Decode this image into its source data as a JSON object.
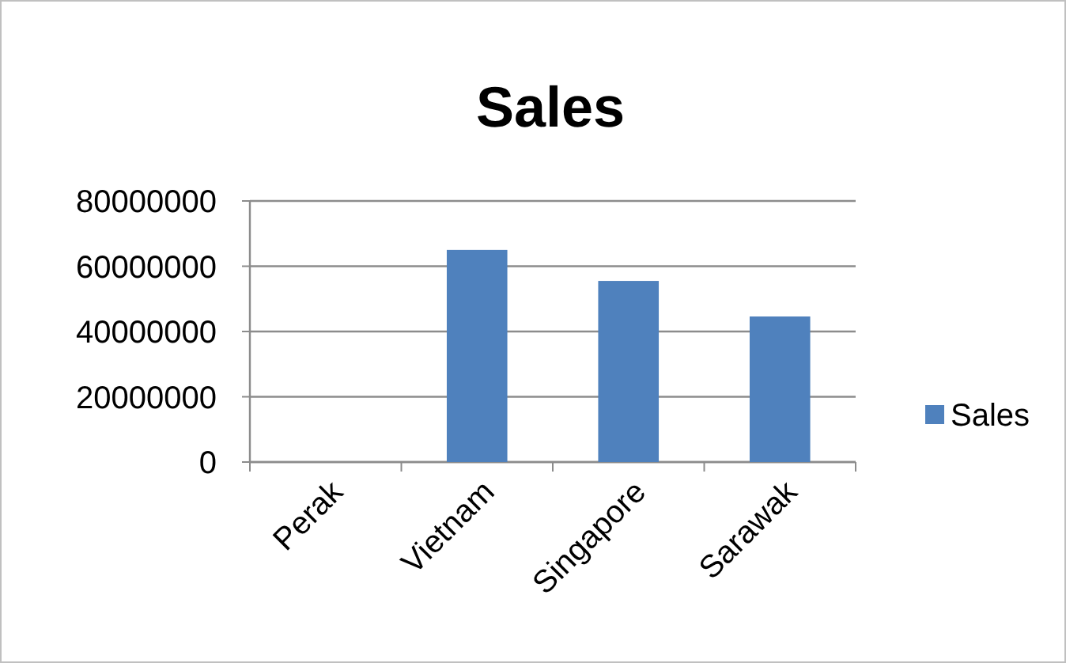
{
  "chart_data": {
    "type": "bar",
    "title": "Sales",
    "categories": [
      "Perak",
      "Vietnam",
      "Singapore",
      "Sarawak"
    ],
    "series": [
      {
        "name": "Sales",
        "color": "#4f81bd",
        "values": [
          0,
          65000000,
          55500000,
          44600000
        ]
      }
    ],
    "ylim": [
      0,
      80000000
    ],
    "yticks": [
      0,
      20000000,
      40000000,
      60000000,
      80000000
    ],
    "grid": "y",
    "legend": "right"
  }
}
